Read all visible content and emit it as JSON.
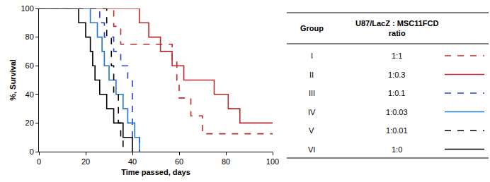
{
  "chart_data": {
    "type": "step",
    "x_label": "Time passed, days",
    "y_label": "%, Survival",
    "xlim": [
      0,
      100
    ],
    "xticks": [
      0,
      20,
      40,
      60,
      80,
      100
    ],
    "ylim": [
      0,
      100
    ],
    "yticks": [
      0,
      20,
      40,
      60,
      80,
      100
    ],
    "grid": false,
    "legend_header": {
      "group": "Group",
      "ratio": [
        "U87/LacZ : MSC11FCD",
        "ratio"
      ]
    },
    "series": [
      {
        "name": "I",
        "ratio": "1:1",
        "color": "#c0282d",
        "line_style": "dashed",
        "x": [
          0,
          32,
          35,
          57,
          59,
          60,
          65,
          70,
          100
        ],
        "values": [
          100,
          87.5,
          75,
          62.5,
          50,
          37.5,
          25,
          12.5,
          12.5
        ]
      },
      {
        "name": "II",
        "ratio": "1:0.3",
        "color": "#c0282d",
        "line_style": "solid",
        "x": [
          0,
          43,
          47,
          52,
          57,
          62,
          75,
          81,
          86,
          100
        ],
        "values": [
          100,
          90,
          80,
          70,
          60,
          50,
          40,
          30,
          20,
          20
        ]
      },
      {
        "name": "III",
        "ratio": "1:0.1",
        "color": "#2b3fd6",
        "line_style": "dashed",
        "x": [
          0,
          26,
          28,
          32,
          35,
          38,
          40,
          43
        ],
        "values": [
          100,
          90,
          80,
          70,
          60,
          50,
          10,
          0
        ]
      },
      {
        "name": "IV",
        "ratio": "1:0.03",
        "color": "#1f78c8",
        "line_style": "solid",
        "x": [
          0,
          22,
          25,
          27,
          28,
          30,
          33,
          36,
          38,
          41,
          43
        ],
        "values": [
          100,
          90,
          80,
          70,
          60,
          50,
          40,
          30,
          20,
          10,
          0
        ]
      },
      {
        "name": "V",
        "ratio": "1:0.01",
        "color": "#000000",
        "line_style": "dashed",
        "x": [
          0,
          29,
          31,
          32,
          34,
          35,
          36
        ],
        "values": [
          100,
          80,
          60,
          40,
          20,
          10,
          0
        ]
      },
      {
        "name": "VI",
        "ratio": "1:0",
        "color": "#000000",
        "line_style": "solid",
        "x": [
          0,
          17,
          20,
          22,
          23,
          24,
          26,
          29,
          32,
          36,
          40
        ],
        "values": [
          100,
          90,
          80,
          70,
          60,
          50,
          40,
          30,
          20,
          10,
          0
        ]
      }
    ]
  }
}
